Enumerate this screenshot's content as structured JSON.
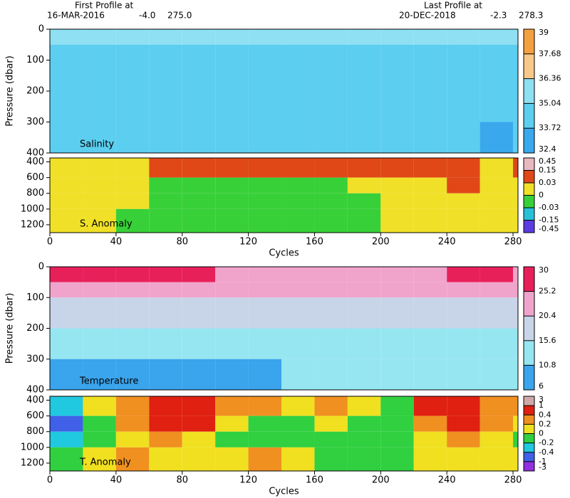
{
  "header": {
    "first_label": "First Profile at",
    "first_date": "16-MAR-2016",
    "first_lat": "-4.0",
    "first_lon": "275.0",
    "last_label": "Last Profile at",
    "last_date": "20-DEC-2018",
    "last_lat": "-2.3",
    "last_lon": "278.3"
  },
  "chart_data": [
    {
      "type": "heatmap",
      "label": "Salinity",
      "ylabel": "Pressure (dbar)",
      "x_edges": [
        0,
        20,
        40,
        60,
        80,
        100,
        120,
        140,
        160,
        180,
        200,
        220,
        240,
        260,
        280,
        283
      ],
      "y_edges": [
        0,
        50,
        100,
        200,
        300,
        400
      ],
      "z": [
        [
          35.1,
          35.1,
          35.1,
          35.1,
          35.1,
          35.1,
          35.1,
          35.1,
          35.1,
          35.1,
          35.1,
          35.1,
          35.1,
          35.1,
          35.1
        ],
        [
          35.0,
          35.0,
          35.0,
          35.0,
          35.0,
          35.0,
          35.0,
          35.0,
          35.0,
          35.0,
          35.0,
          35.0,
          35.0,
          35.0,
          35.0
        ],
        [
          34.9,
          34.9,
          34.9,
          34.9,
          34.9,
          34.9,
          34.9,
          34.9,
          34.9,
          34.9,
          34.9,
          34.9,
          34.9,
          34.9,
          34.9
        ],
        [
          34.8,
          34.8,
          34.8,
          34.8,
          34.8,
          34.8,
          34.8,
          34.8,
          34.8,
          34.8,
          34.8,
          34.8,
          34.8,
          34.8,
          34.8
        ],
        [
          34.7,
          34.7,
          34.7,
          34.7,
          34.7,
          34.7,
          34.7,
          34.7,
          34.7,
          34.7,
          34.7,
          34.7,
          34.7,
          33.7,
          34.7
        ]
      ],
      "xlim": [
        0,
        283
      ],
      "ylim": [
        0,
        400
      ],
      "yticks": [
        0,
        100,
        200,
        300,
        400
      ],
      "colorbar": {
        "levels": [
          32.4,
          33.72,
          35.04,
          36.36,
          37.68,
          39
        ],
        "colors": [
          "#3aa8ec",
          "#5ccef0",
          "#8ee0f2",
          "#f8c88a",
          "#f5a040"
        ]
      }
    },
    {
      "type": "heatmap",
      "label": "S. Anomaly",
      "xlabel": "Cycles",
      "x_edges": [
        0,
        20,
        40,
        60,
        80,
        100,
        120,
        140,
        160,
        180,
        200,
        220,
        240,
        260,
        280,
        283
      ],
      "y_edges": [
        350,
        600,
        800,
        1000,
        1300
      ],
      "z": [
        [
          0.02,
          0.02,
          0.02,
          0.1,
          0.1,
          0.1,
          0.1,
          0.1,
          0.1,
          0.1,
          0.1,
          0.1,
          0.1,
          0.02,
          0.1
        ],
        [
          0.02,
          0.02,
          0.02,
          -0.01,
          -0.01,
          -0.01,
          -0.01,
          -0.01,
          -0.01,
          0.02,
          0.02,
          0.02,
          0.1,
          0.02,
          0.02
        ],
        [
          0.02,
          0.02,
          0.02,
          -0.01,
          -0.01,
          -0.01,
          -0.01,
          -0.01,
          -0.01,
          -0.01,
          0.02,
          0.02,
          0.02,
          0.02,
          0.02
        ],
        [
          0.02,
          0.02,
          -0.01,
          -0.01,
          -0.01,
          -0.01,
          -0.01,
          -0.01,
          -0.01,
          -0.01,
          0.02,
          0.02,
          0.02,
          0.02,
          0.02
        ]
      ],
      "xlim": [
        0,
        283
      ],
      "ylim": [
        350,
        1300
      ],
      "xticks": [
        0,
        40,
        80,
        120,
        160,
        200,
        240,
        280
      ],
      "yticks": [
        400,
        600,
        800,
        1000,
        1200
      ],
      "colorbar": {
        "levels": [
          -0.45,
          -0.15,
          -0.03,
          0,
          0.03,
          0.15,
          0.45
        ],
        "colors": [
          "#5a3ce0",
          "#28c0d8",
          "#38d038",
          "#f0e028",
          "#e04818",
          "#e8b8c0"
        ]
      }
    },
    {
      "type": "heatmap",
      "label": "Temperature",
      "ylabel": "Pressure (dbar)",
      "x_edges": [
        0,
        20,
        40,
        60,
        80,
        100,
        120,
        140,
        160,
        180,
        200,
        220,
        240,
        260,
        280,
        283
      ],
      "y_edges": [
        0,
        50,
        100,
        200,
        300,
        400
      ],
      "z": [
        [
          27,
          27,
          27,
          27,
          27,
          22,
          22,
          22,
          22,
          22,
          22,
          22,
          26,
          26,
          22
        ],
        [
          22,
          22,
          22,
          22,
          22,
          21,
          21,
          21,
          21,
          21,
          21,
          21,
          21,
          22,
          21
        ],
        [
          18,
          18,
          18,
          18,
          17,
          17,
          17,
          17,
          17,
          17,
          17,
          17,
          17,
          17,
          17
        ],
        [
          14,
          14,
          14,
          14,
          14,
          13,
          13,
          13,
          14,
          14,
          13,
          13,
          13,
          14,
          14
        ],
        [
          10.5,
          10.5,
          10.5,
          10.5,
          10.5,
          10.5,
          10.5,
          11,
          11,
          11,
          11,
          11,
          11,
          11,
          11
        ]
      ],
      "xlim": [
        0,
        283
      ],
      "ylim": [
        0,
        400
      ],
      "yticks": [
        0,
        100,
        200,
        300,
        400
      ],
      "colorbar": {
        "levels": [
          6,
          10.8,
          15.6,
          20.4,
          25.2,
          30
        ],
        "colors": [
          "#3aa4ec",
          "#96e6f2",
          "#c8d4e8",
          "#f0a4cc",
          "#e8205a"
        ]
      }
    },
    {
      "type": "heatmap",
      "label": "T. Anomaly",
      "xlabel": "Cycles",
      "x_edges": [
        0,
        20,
        40,
        60,
        80,
        100,
        120,
        140,
        160,
        180,
        200,
        220,
        240,
        260,
        280,
        283
      ],
      "y_edges": [
        350,
        600,
        800,
        1000,
        1300
      ],
      "z": [
        [
          -0.3,
          0.1,
          0.3,
          0.8,
          0.8,
          0.3,
          0.3,
          0.1,
          0.3,
          0.1,
          -0.1,
          0.8,
          0.8,
          0.3,
          0.3
        ],
        [
          -0.5,
          -0.1,
          0.3,
          0.5,
          0.5,
          0.1,
          -0.1,
          -0.1,
          0.1,
          -0.1,
          -0.1,
          0.3,
          0.5,
          0.3,
          0.1
        ],
        [
          -0.3,
          -0.1,
          0.1,
          0.3,
          0.1,
          -0.1,
          -0.1,
          -0.1,
          -0.1,
          -0.1,
          -0.1,
          0.1,
          0.3,
          0.1,
          -0.1
        ],
        [
          -0.1,
          0.1,
          0.3,
          0.1,
          0.1,
          0.1,
          0.3,
          0.1,
          -0.1,
          -0.1,
          -0.1,
          0.1,
          0.1,
          0.1,
          0.1
        ]
      ],
      "xlim": [
        0,
        283
      ],
      "ylim": [
        350,
        1300
      ],
      "xticks": [
        0,
        40,
        80,
        120,
        160,
        200,
        240,
        280
      ],
      "yticks": [
        400,
        600,
        800,
        1000,
        1200
      ],
      "colorbar": {
        "levels": [
          -3,
          -1,
          -0.4,
          -0.2,
          0,
          0.2,
          0.4,
          1,
          3
        ],
        "colors": [
          "#9030e0",
          "#4060e8",
          "#20c8e0",
          "#30d040",
          "#f0e020",
          "#f09020",
          "#e02010",
          "#d0a8a8"
        ]
      }
    }
  ]
}
